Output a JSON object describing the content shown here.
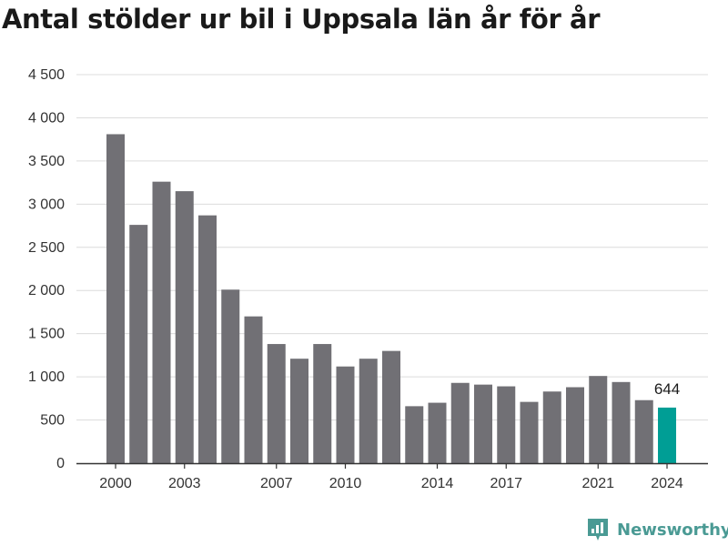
{
  "chart_data": {
    "type": "bar",
    "title": "Antal stölder ur bil i Uppsala län år för år",
    "categories": [
      "2000",
      "2001",
      "2002",
      "2003",
      "2004",
      "2005",
      "2006",
      "2007",
      "2008",
      "2009",
      "2010",
      "2011",
      "2012",
      "2013",
      "2014",
      "2015",
      "2016",
      "2017",
      "2018",
      "2019",
      "2020",
      "2021",
      "2022",
      "2023",
      "2024"
    ],
    "values": [
      3810,
      2760,
      3260,
      3150,
      2870,
      2010,
      1700,
      1380,
      1210,
      1380,
      1120,
      1210,
      1300,
      660,
      700,
      930,
      910,
      890,
      710,
      830,
      880,
      1010,
      940,
      730,
      644
    ],
    "x_tick_labels": [
      "2000",
      "2003",
      "2007",
      "2010",
      "2014",
      "2017",
      "2021",
      "2024"
    ],
    "y_tick_labels": [
      "0",
      "500",
      "1 000",
      "1 500",
      "2 000",
      "2 500",
      "3 000",
      "3 500",
      "4 000",
      "4 500"
    ],
    "ylim": [
      0,
      4500
    ],
    "highlight": {
      "category": "2024",
      "value_label": "644"
    },
    "grid": true,
    "colors": {
      "bar": "#717075",
      "highlight": "#009e95",
      "grid": "#dcdcdc",
      "axis": "#333333"
    }
  },
  "brand": {
    "name": "Newsworthy",
    "icon": "newsworthy-logo-icon",
    "color": "#4a9a94"
  }
}
